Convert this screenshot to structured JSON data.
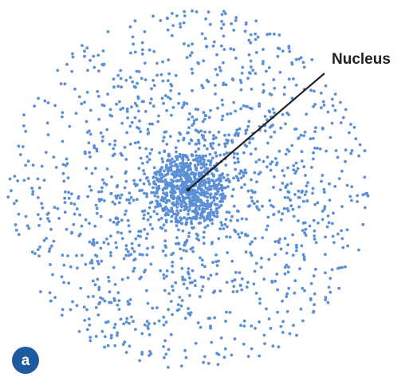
{
  "label": "Nucleus",
  "panel": "a"
}
